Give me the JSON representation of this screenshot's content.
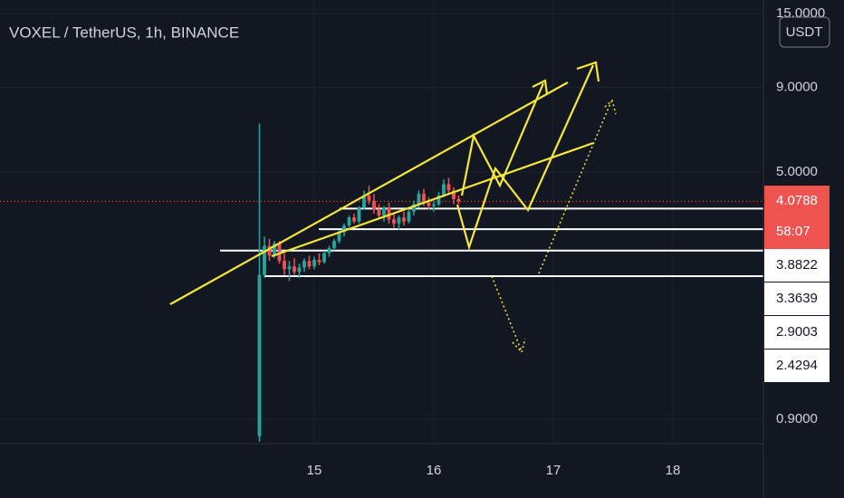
{
  "chart_data": {
    "type": "candlestick",
    "title": "VOXEL / TetherUS, 1h, BINANCE",
    "unit_button": "USDT",
    "log_scale": true,
    "grid": true,
    "up_color": "#26a69a",
    "down_color": "#ef5350",
    "xlim": [
      12.371,
      18.758
    ],
    "xticks": [
      15,
      16,
      17,
      18
    ],
    "ylim": [
      0.76,
      16.5
    ],
    "yticks": [
      {
        "value": 0.9,
        "label": "0.9000"
      },
      {
        "value": 5,
        "label": "5.0000"
      },
      {
        "value": 9,
        "label": "9.0000"
      },
      {
        "value": 15,
        "label": "15.0000"
      }
    ],
    "x": [
      14.5417,
      14.5833,
      14.625,
      14.6667,
      14.7083,
      14.75,
      14.7917,
      14.8333,
      14.875,
      14.9167,
      14.9583,
      15,
      15.0417,
      15.0833,
      15.125,
      15.1667,
      15.2083,
      15.25,
      15.2917,
      15.3333,
      15.375,
      15.4167,
      15.4583,
      15.5,
      15.5417,
      15.5833,
      15.625,
      15.6667,
      15.7083,
      15.75,
      15.7917,
      15.8333,
      15.875,
      15.9167,
      15.9583,
      16,
      16.0417,
      16.0833,
      16.125,
      16.1667,
      16.2083
    ],
    "open": [
      0.8,
      2.45,
      3.0,
      2.8,
      3.05,
      2.7,
      2.55,
      2.6,
      2.5,
      2.58,
      2.7,
      2.6,
      2.72,
      2.68,
      2.85,
      2.95,
      3.1,
      3.3,
      3.45,
      3.65,
      3.55,
      3.9,
      4.25,
      4.1,
      3.85,
      3.7,
      3.9,
      3.6,
      3.5,
      3.65,
      3.55,
      3.8,
      4.0,
      4.3,
      4.05,
      3.95,
      4.0,
      4.25,
      4.6,
      4.4,
      4.15
    ],
    "high": [
      7.0,
      3.2,
      3.15,
      3.1,
      3.1,
      2.85,
      2.7,
      2.75,
      2.65,
      2.75,
      2.8,
      2.78,
      2.85,
      2.9,
      3.0,
      3.15,
      3.35,
      3.5,
      3.7,
      3.75,
      3.95,
      4.4,
      4.55,
      4.3,
      4.0,
      3.95,
      4.05,
      3.75,
      3.7,
      3.8,
      3.85,
      4.1,
      4.4,
      4.45,
      4.2,
      4.1,
      4.35,
      4.75,
      4.8,
      4.5,
      4.25
    ],
    "low": [
      0.77,
      2.4,
      2.7,
      2.75,
      2.65,
      2.45,
      2.35,
      2.45,
      2.4,
      2.5,
      2.55,
      2.55,
      2.62,
      2.65,
      2.78,
      2.9,
      3.05,
      3.2,
      3.4,
      3.5,
      3.5,
      3.85,
      4.0,
      3.75,
      3.6,
      3.55,
      3.5,
      3.4,
      3.35,
      3.45,
      3.5,
      3.7,
      3.9,
      3.95,
      3.85,
      3.8,
      3.95,
      4.2,
      4.3,
      4.0,
      4.0
    ],
    "close": [
      2.45,
      3.0,
      2.8,
      3.05,
      2.7,
      2.55,
      2.6,
      2.5,
      2.58,
      2.7,
      2.6,
      2.72,
      2.68,
      2.85,
      2.95,
      3.1,
      3.3,
      3.45,
      3.65,
      3.55,
      3.9,
      4.25,
      4.1,
      3.85,
      3.7,
      3.9,
      3.6,
      3.5,
      3.65,
      3.55,
      3.8,
      4.0,
      4.3,
      4.05,
      3.95,
      4.0,
      4.25,
      4.6,
      4.4,
      4.15,
      4.0788
    ],
    "last_price": 4.0788,
    "countdown": "58:07",
    "levels": [
      3.8822,
      3.3639,
      2.9003,
      2.4294
    ]
  }
}
